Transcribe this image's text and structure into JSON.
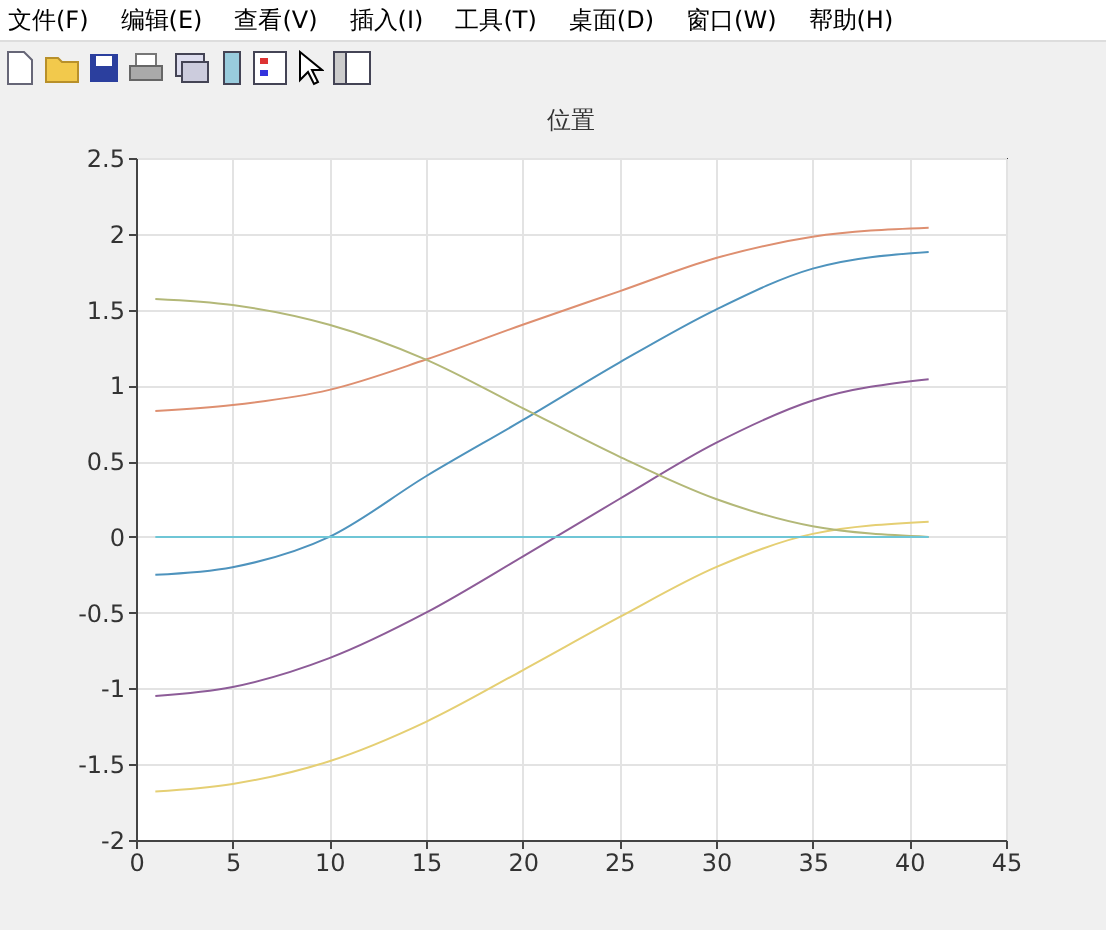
{
  "chart_data": {
    "type": "line",
    "title": "位置",
    "annotations": [
      "文件(F)",
      "编辑(E)",
      "查看(V)",
      "插入(I)",
      "工具(T)",
      "桌面(D)",
      "窗口(W)",
      "帮助(H)"
    ],
    "x": [
      1,
      5,
      10,
      15,
      20,
      25,
      30,
      35,
      41
    ],
    "series": [
      {
        "color": "#4e93bd",
        "values": [
          -0.25,
          -0.2,
          0,
          0.4,
          0.77,
          1.15,
          1.5,
          1.77,
          1.88
        ]
      },
      {
        "color": "#de8f70",
        "values": [
          0.83,
          0.87,
          0.97,
          1.17,
          1.4,
          1.62,
          1.84,
          1.98,
          2.04
        ]
      },
      {
        "color": "#e5cf73",
        "values": [
          -1.68,
          -1.63,
          -1.48,
          -1.22,
          -0.88,
          -0.53,
          -0.2,
          0.02,
          0.1
        ]
      },
      {
        "color": "#8d5c98",
        "values": [
          -1.05,
          -0.99,
          -0.8,
          -0.5,
          -0.13,
          0.25,
          0.62,
          0.9,
          1.04
        ]
      },
      {
        "color": "#b3b878",
        "values": [
          1.57,
          1.53,
          1.4,
          1.17,
          0.85,
          0.53,
          0.25,
          0.07,
          0
        ]
      },
      {
        "color": "#6fc6d6",
        "values": [
          0,
          0,
          0,
          0,
          0,
          0,
          0,
          0,
          0
        ]
      }
    ],
    "xlim": [
      0,
      45
    ],
    "xticks": [
      0,
      5,
      10,
      15,
      20,
      25,
      30,
      35,
      40,
      45
    ],
    "ylim": [
      -2,
      2.5
    ],
    "yticks": [
      -2,
      -1.5,
      -1,
      -0.5,
      0,
      0.5,
      1,
      1.5,
      2,
      2.5
    ],
    "grid": true,
    "line_style": "solid",
    "marker": "none"
  }
}
